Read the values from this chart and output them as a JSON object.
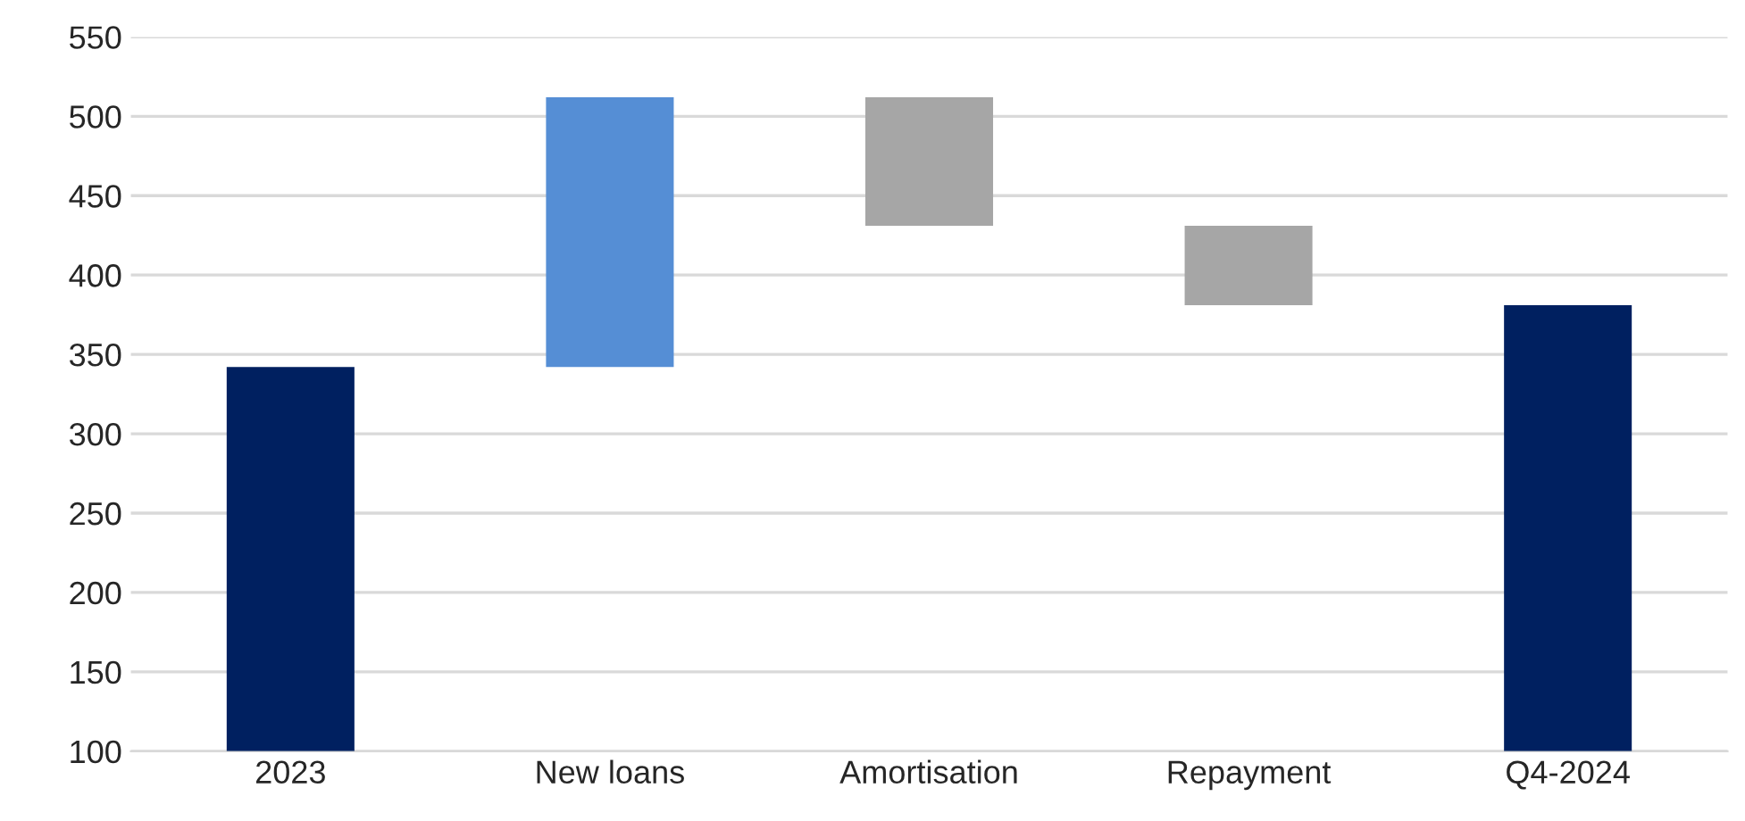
{
  "chart_data": {
    "type": "bar",
    "categories": [
      "2023",
      "New loans",
      "Amortisation",
      "Repayment",
      "Q4-2024"
    ],
    "values": [
      242,
      170,
      -81,
      -50,
      281
    ],
    "base": [
      100,
      342,
      512,
      431,
      100
    ],
    "colors": [
      "#002060",
      "#558ed5",
      "#a6a6a6",
      "#a6a6a6",
      "#002060"
    ],
    "ylim": [
      100,
      550
    ],
    "yticks": [
      100,
      150,
      200,
      250,
      300,
      350,
      400,
      450,
      500,
      550
    ],
    "grid": "y",
    "legend": false
  }
}
